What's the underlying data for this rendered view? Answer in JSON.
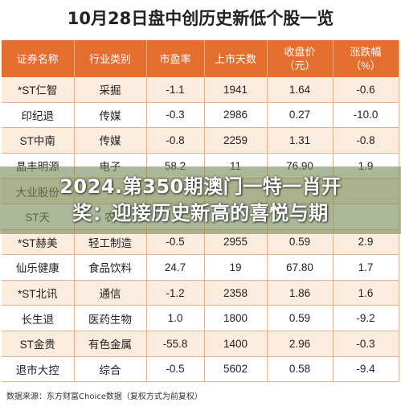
{
  "title": "10月28日盘中创历史新低个股一览",
  "columns": [
    {
      "line1": "证券名称",
      "line2": ""
    },
    {
      "line1": "行业类别",
      "line2": ""
    },
    {
      "line1": "市盈率",
      "line2": ""
    },
    {
      "line1": "上市天数",
      "line2": ""
    },
    {
      "line1": "收盘价",
      "line2": "（元）"
    },
    {
      "line1": "涨跌幅",
      "line2": "（%）"
    }
  ],
  "rows": [
    [
      "*ST仁智",
      "采掘",
      "-1.1",
      "1941",
      "1.64",
      "-0.6"
    ],
    [
      "印纪退",
      "传媒",
      "-0.3",
      "2986",
      "0.27",
      "-10.0"
    ],
    [
      "ST中南",
      "传媒",
      "-0.8",
      "2259",
      "1.31",
      "-0.8"
    ],
    [
      "晶丰明源",
      "电子",
      "58.2",
      "11",
      "76.90",
      "1.9"
    ],
    [
      "大业股份",
      "",
      "",
      "",
      "",
      ""
    ],
    [
      "ST天",
      "农",
      "",
      "",
      "",
      ""
    ],
    [
      "*ST赫美",
      "轻工制造",
      "-0.5",
      "2955",
      "0.59",
      "2.9"
    ],
    [
      "仙乐健康",
      "食品饮料",
      "24.7",
      "19",
      "67.80",
      "1.7"
    ],
    [
      "*ST北讯",
      "通信",
      "-1.2",
      "2358",
      "1.86",
      "1.6"
    ],
    [
      "长生退",
      "医药生物",
      "1.0",
      "1800",
      "0.59",
      "-9.2"
    ],
    [
      "ST金贵",
      "有色金属",
      "-55.8",
      "1400",
      "2.96",
      "-0.3"
    ],
    [
      "退市大控",
      "综合",
      "-0.5",
      "5602",
      "0.58",
      "-9.4"
    ]
  ],
  "footer": "数据来源：东方财富Choice数据（复权方式为前复权）",
  "overlay": {
    "line1": "2024.第350期澳门一特一肖开",
    "line2": "奖：迎接历史新高的喜悦与期"
  },
  "colors": {
    "header": "#e36e2d",
    "stripe": "#fcecdd",
    "overlay": "#788c5a"
  }
}
